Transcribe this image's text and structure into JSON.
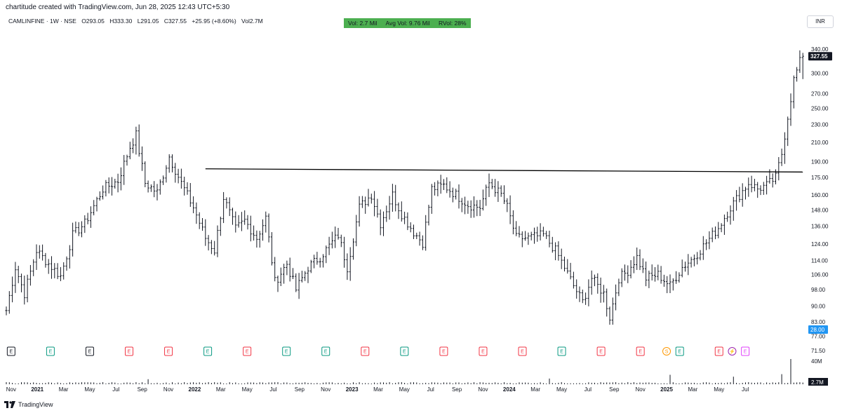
{
  "header": {
    "created_by": "chartitude created with TradingView.com, Jun 28, 2025 12:43 UTC+5:30"
  },
  "symbol": {
    "name": "CAMLINFINE · 1W · NSE",
    "open": "O293.05",
    "high": "H333.30",
    "low": "L291.05",
    "close": "C327.55",
    "change": "+25.95 (+8.60%)",
    "volume": "Vol2.7M"
  },
  "volume_box": {
    "vol": "Vol: 2.7 Mil",
    "avg_vol": "Avg Vol: 9.76 Mil",
    "rvol": "RVol: 28%",
    "color": "#4caf50"
  },
  "currency": "INR",
  "footer": {
    "brand": "TradingView",
    "logo_icon": "tradingview-logo-icon"
  },
  "chart_data": {
    "type": "ohlc-bar",
    "y_scale": "log",
    "ylim": [
      71.5,
      355
    ],
    "y_ticks": [
      "340.00",
      "300.00",
      "270.00",
      "250.00",
      "230.00",
      "210.00",
      "190.00",
      "175.00",
      "160.00",
      "148.00",
      "136.00",
      "124.00",
      "114.00",
      "106.00",
      "98.00",
      "90.00",
      "83.00",
      "77.00",
      "71.50"
    ],
    "y_tick_values": [
      340,
      300,
      270,
      250,
      230,
      210,
      190,
      175,
      160,
      148,
      136,
      124,
      114,
      106,
      98,
      90,
      83,
      77,
      71.5
    ],
    "last_price_label": "327.55",
    "last_price": 327.55,
    "marker_label": "28.00",
    "marker_value": 79.7,
    "x_ticks": [
      "Nov",
      "2021",
      "Mar",
      "May",
      "Jul",
      "Sep",
      "Nov",
      "2022",
      "Mar",
      "May",
      "Jul",
      "Sep",
      "Nov",
      "2023",
      "Mar",
      "May",
      "Jul",
      "Sep",
      "Nov",
      "2024",
      "Mar",
      "May",
      "Jul",
      "Sep",
      "Nov",
      "2025",
      "Mar",
      "May",
      "Jul"
    ],
    "bold_x_ticks": [
      "2021",
      "2022",
      "2023",
      "2024",
      "2025"
    ],
    "series": [
      {
        "name": "CAMLINFINE",
        "type": "weekly-bars",
        "waypoints": [
          {
            "week": 0,
            "close": 88
          },
          {
            "week": 3,
            "close": 110
          },
          {
            "week": 6,
            "close": 96
          },
          {
            "week": 10,
            "close": 120
          },
          {
            "week": 14,
            "close": 112
          },
          {
            "week": 18,
            "close": 105
          },
          {
            "week": 22,
            "close": 130
          },
          {
            "week": 26,
            "close": 138
          },
          {
            "week": 32,
            "close": 165
          },
          {
            "week": 37,
            "close": 172
          },
          {
            "week": 41,
            "close": 205
          },
          {
            "week": 43,
            "close": 218
          },
          {
            "week": 46,
            "close": 170
          },
          {
            "week": 50,
            "close": 162
          },
          {
            "week": 54,
            "close": 195
          },
          {
            "week": 58,
            "close": 170
          },
          {
            "week": 62,
            "close": 150
          },
          {
            "week": 66,
            "close": 128
          },
          {
            "week": 69,
            "close": 120
          },
          {
            "week": 72,
            "close": 158
          },
          {
            "week": 76,
            "close": 134
          },
          {
            "week": 79,
            "close": 140
          },
          {
            "week": 83,
            "close": 128
          },
          {
            "week": 86,
            "close": 142
          },
          {
            "week": 89,
            "close": 102
          },
          {
            "week": 93,
            "close": 112
          },
          {
            "week": 96,
            "close": 98
          },
          {
            "week": 100,
            "close": 110
          },
          {
            "week": 104,
            "close": 116
          },
          {
            "week": 110,
            "close": 130
          },
          {
            "week": 113,
            "close": 110
          },
          {
            "week": 117,
            "close": 150
          },
          {
            "week": 121,
            "close": 160
          },
          {
            "week": 124,
            "close": 138
          },
          {
            "week": 128,
            "close": 160
          },
          {
            "week": 131,
            "close": 145
          },
          {
            "week": 135,
            "close": 132
          },
          {
            "week": 138,
            "close": 125
          },
          {
            "week": 141,
            "close": 165
          },
          {
            "week": 145,
            "close": 168
          },
          {
            "week": 149,
            "close": 160
          },
          {
            "week": 153,
            "close": 152
          },
          {
            "week": 157,
            "close": 150
          },
          {
            "week": 160,
            "close": 170
          },
          {
            "week": 164,
            "close": 160
          },
          {
            "week": 166,
            "close": 150
          },
          {
            "week": 169,
            "close": 128
          },
          {
            "week": 173,
            "close": 128
          },
          {
            "week": 178,
            "close": 130
          },
          {
            "week": 182,
            "close": 120
          },
          {
            "week": 185,
            "close": 110
          },
          {
            "week": 188,
            "close": 100
          },
          {
            "week": 191,
            "close": 92
          },
          {
            "week": 194,
            "close": 104
          },
          {
            "week": 198,
            "close": 96
          },
          {
            "week": 200,
            "close": 85
          },
          {
            "week": 203,
            "close": 104
          },
          {
            "week": 206,
            "close": 108
          },
          {
            "week": 209,
            "close": 116
          },
          {
            "week": 212,
            "close": 104
          },
          {
            "week": 216,
            "close": 106
          },
          {
            "week": 220,
            "close": 100
          },
          {
            "week": 224,
            "close": 110
          },
          {
            "week": 228,
            "close": 116
          },
          {
            "week": 232,
            "close": 125
          },
          {
            "week": 236,
            "close": 135
          },
          {
            "week": 240,
            "close": 150
          },
          {
            "week": 243,
            "close": 160
          },
          {
            "week": 246,
            "close": 170
          },
          {
            "week": 249,
            "close": 165
          },
          {
            "week": 252,
            "close": 168
          },
          {
            "week": 255,
            "close": 175
          },
          {
            "week": 257,
            "close": 198
          },
          {
            "week": 259,
            "close": 240
          },
          {
            "week": 261,
            "close": 290
          },
          {
            "week": 263,
            "close": 318
          },
          {
            "week": 264,
            "close": 327.55
          }
        ]
      },
      {
        "name": "Volume",
        "type": "volume",
        "scale_label": "40M",
        "last_label": "2.7M",
        "spikes": [
          {
            "week": 47,
            "value": 8
          },
          {
            "week": 180,
            "value": 9
          },
          {
            "week": 220,
            "value": 15
          },
          {
            "week": 241,
            "value": 12
          },
          {
            "week": 257,
            "value": 16
          },
          {
            "week": 260,
            "value": 40
          },
          {
            "week": 264,
            "value": 2.7
          }
        ]
      }
    ],
    "trendline": {
      "from": {
        "week": 66,
        "price": 183
      },
      "to": {
        "week": 264,
        "price": 180
      }
    },
    "events": [
      {
        "label": "E",
        "x_month": "Nov 2020",
        "kind": "neutral"
      },
      {
        "label": "E",
        "x_month": "Feb 2021",
        "kind": "positive"
      },
      {
        "label": "E",
        "x_month": "May 2021",
        "kind": "neutral"
      },
      {
        "label": "E",
        "x_month": "Aug 2021",
        "kind": "negative"
      },
      {
        "label": "E",
        "x_month": "Nov 2021",
        "kind": "negative"
      },
      {
        "label": "E",
        "x_month": "Feb 2022",
        "kind": "positive"
      },
      {
        "label": "E",
        "x_month": "May 2022",
        "kind": "negative"
      },
      {
        "label": "E",
        "x_month": "Aug 2022",
        "kind": "positive"
      },
      {
        "label": "E",
        "x_month": "Nov 2022",
        "kind": "positive"
      },
      {
        "label": "E",
        "x_month": "Feb 2023",
        "kind": "negative"
      },
      {
        "label": "E",
        "x_month": "May 2023",
        "kind": "positive"
      },
      {
        "label": "E",
        "x_month": "Aug 2023",
        "kind": "negative"
      },
      {
        "label": "E",
        "x_month": "Nov 2023",
        "kind": "negative"
      },
      {
        "label": "E",
        "x_month": "Feb 2024",
        "kind": "negative"
      },
      {
        "label": "E",
        "x_month": "May 2024",
        "kind": "positive"
      },
      {
        "label": "E",
        "x_month": "Aug 2024",
        "kind": "negative"
      },
      {
        "label": "E",
        "x_month": "Nov 2024",
        "kind": "negative"
      },
      {
        "label": "S",
        "x_month": "Jan 2025",
        "kind": "split"
      },
      {
        "label": "E",
        "x_month": "Feb 2025",
        "kind": "positive"
      },
      {
        "label": "E",
        "x_month": "May 2025",
        "kind": "negative"
      },
      {
        "label": "⚡",
        "x_month": "Jun 2025",
        "kind": "flash"
      },
      {
        "label": "E",
        "x_month": "Jul 2025",
        "kind": "future"
      }
    ],
    "colors": {
      "bars": "#131722",
      "trendline": "#000000",
      "positive": "#089981",
      "negative": "#f23645",
      "neutral": "#131722",
      "split": "#ff9800",
      "flash": "#9c27b0",
      "future": "#e040fb",
      "price_label_bg": "#131722",
      "marker_bg": "#2196f3"
    }
  }
}
